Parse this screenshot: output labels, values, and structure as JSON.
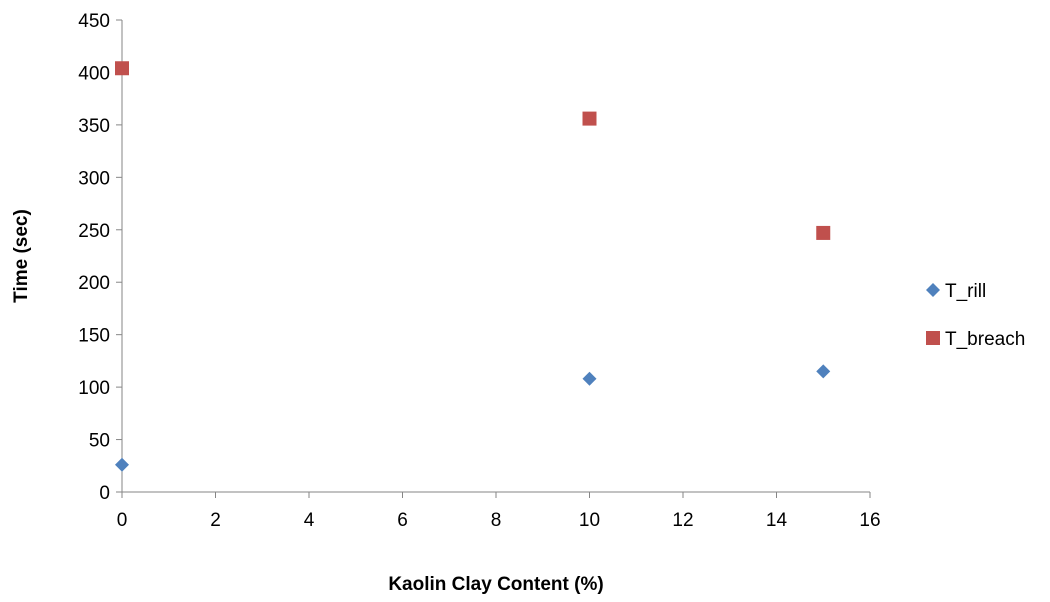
{
  "chart_data": {
    "type": "scatter",
    "title": "",
    "xlabel": "Kaolin Clay Content (%)",
    "ylabel": "Time (sec)",
    "xlim": [
      0,
      16
    ],
    "ylim": [
      0,
      450
    ],
    "xticks": [
      0,
      2,
      4,
      6,
      8,
      10,
      12,
      14,
      16
    ],
    "yticks": [
      0,
      50,
      100,
      150,
      200,
      250,
      300,
      350,
      400,
      450
    ],
    "grid": false,
    "legend_position": "right",
    "series": [
      {
        "name": "T_rill",
        "marker": "diamond",
        "color": "#4F81BD",
        "x": [
          0,
          10,
          15
        ],
        "y": [
          26,
          108,
          115
        ]
      },
      {
        "name": "T_breach",
        "marker": "square",
        "color": "#C0504D",
        "x": [
          0,
          10,
          15
        ],
        "y": [
          404,
          356,
          247
        ]
      }
    ]
  }
}
